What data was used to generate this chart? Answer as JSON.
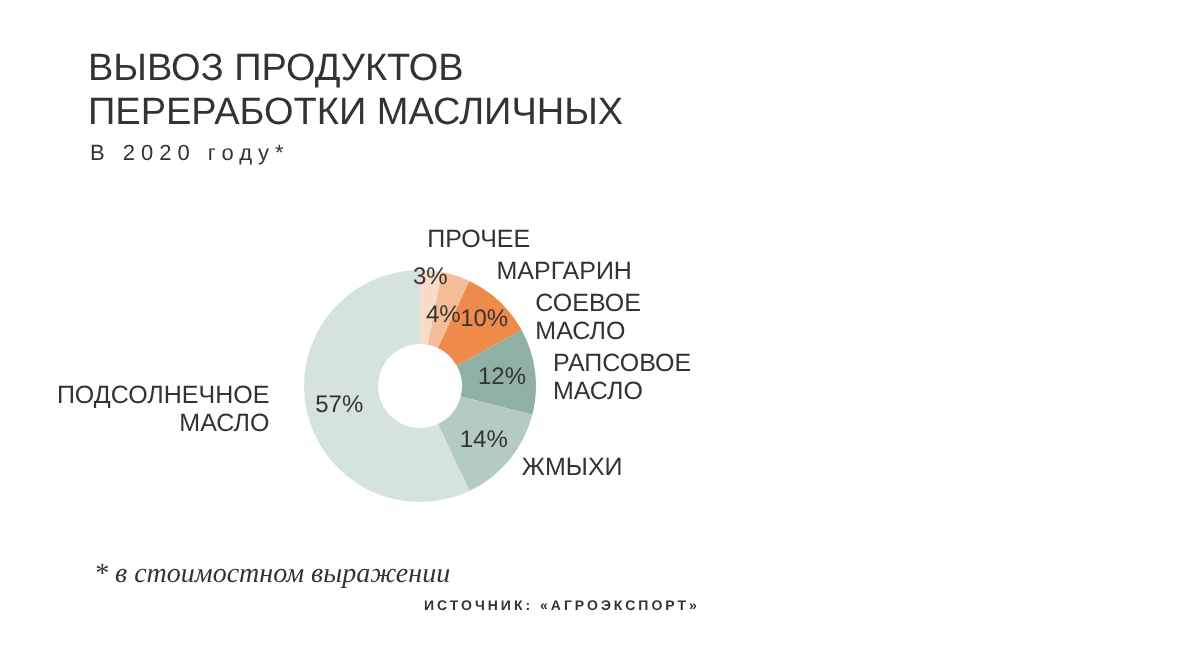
{
  "chart_data": {
    "type": "donut",
    "title": "ВЫВОЗ ПРОДУКТОВ ПЕРЕРАБОТКИ МАСЛИЧНЫХ",
    "subtitle": "В 2020 году*",
    "categories": [
      "ПРОЧЕЕ",
      "МАРГАРИН",
      "СОЕВОЕ МАСЛО",
      "РАПСОВОЕ МАСЛО",
      "ЖМЫХИ",
      "ПОДСОЛНЕЧНОЕ МАСЛО"
    ],
    "values": [
      3,
      4,
      10,
      12,
      14,
      57
    ],
    "colors": [
      "#f8dcc8",
      "#f4bd98",
      "#ee8a4a",
      "#8fb0a3",
      "#b3cbc2",
      "#d5e3dd"
    ],
    "value_labels": [
      "3%",
      "4%",
      "10%",
      "12%",
      "14%",
      "57%"
    ],
    "legend": false,
    "annotations": [
      "* в стоимостном выражении",
      "ИСТОЧНИК: «АГРОЭКСПОРТ»"
    ]
  }
}
